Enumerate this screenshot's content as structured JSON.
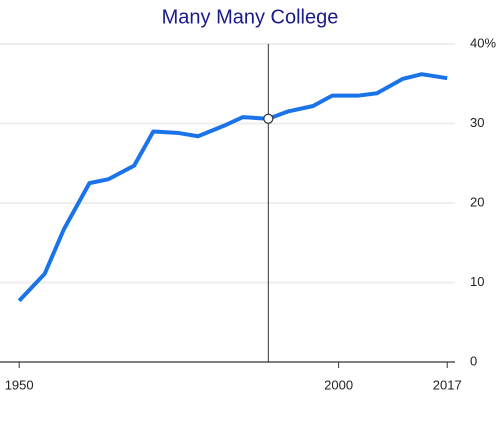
{
  "chart_data": {
    "type": "line",
    "title": "Many Many College",
    "x": [
      1950,
      1954,
      1957,
      1961,
      1964,
      1968,
      1971,
      1975,
      1978,
      1982,
      1985,
      1989,
      1992,
      1996,
      1999,
      2003,
      2006,
      2010,
      2013,
      2017
    ],
    "series": [
      {
        "color": "#1a73e8",
        "values": [
          7.7,
          11.1,
          16.7,
          22.5,
          23,
          24.7,
          29,
          28.8,
          28.4,
          29.7,
          30.8,
          30.6,
          31.5,
          32.2,
          33.5,
          33.5,
          33.8,
          35.6,
          36.2,
          35.7
        ]
      }
    ],
    "xlim": [
      1947,
      2019
    ],
    "xticks": [
      1950,
      2000,
      2017
    ],
    "ylim": [
      0,
      40
    ],
    "yticks": [
      0,
      10,
      20,
      30,
      {
        "value": 40,
        "label": "40%"
      }
    ],
    "grid": true,
    "y_axis_side": "right",
    "hover_index": 11
  }
}
